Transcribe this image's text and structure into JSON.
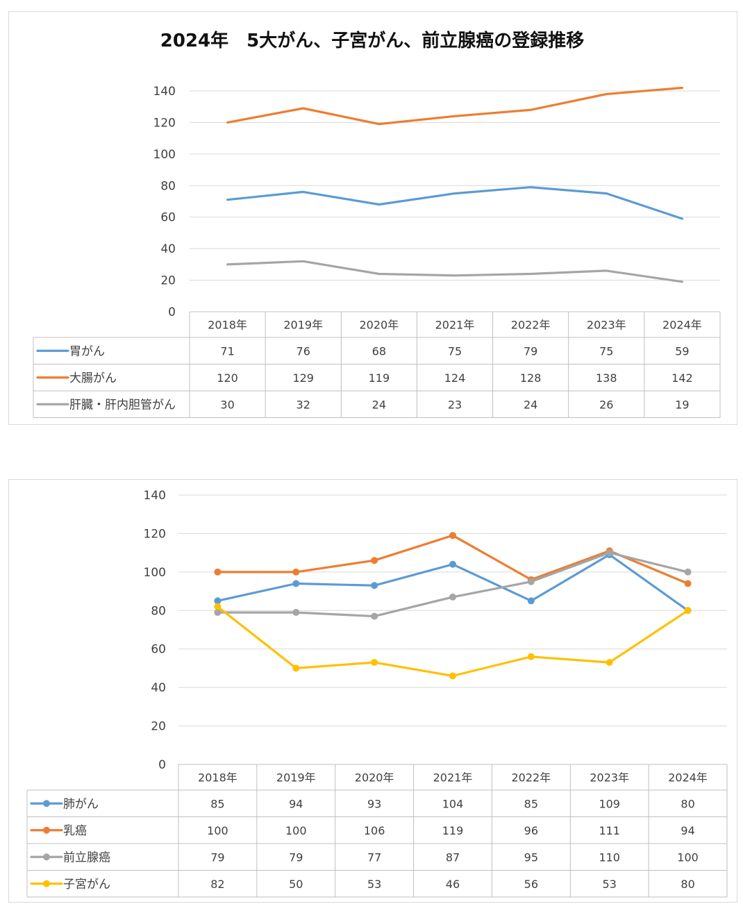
{
  "chart_data": [
    {
      "type": "line",
      "title": "2024年　5大がん、子宮がん、前立腺癌の登録推移",
      "categories": [
        "2018年",
        "2019年",
        "2020年",
        "2021年",
        "2022年",
        "2023年",
        "2024年"
      ],
      "ylim": [
        0,
        140
      ],
      "yticks": [
        0,
        20,
        40,
        60,
        80,
        100,
        120,
        140
      ],
      "grid": true,
      "markers": false,
      "legend": "data-table",
      "series": [
        {
          "name": "胃がん",
          "color": "#5b9bd5",
          "values": [
            71,
            76,
            68,
            75,
            79,
            75,
            59
          ]
        },
        {
          "name": "大腸がん",
          "color": "#ed7d31",
          "values": [
            120,
            129,
            119,
            124,
            128,
            138,
            142
          ]
        },
        {
          "name": "肝臓・肝内胆管がん",
          "color": "#a5a5a5",
          "values": [
            30,
            32,
            24,
            23,
            24,
            26,
            19
          ]
        }
      ]
    },
    {
      "type": "line",
      "title": "",
      "categories": [
        "2018年",
        "2019年",
        "2020年",
        "2021年",
        "2022年",
        "2023年",
        "2024年"
      ],
      "ylim": [
        0,
        140
      ],
      "yticks": [
        0,
        20,
        40,
        60,
        80,
        100,
        120,
        140
      ],
      "grid": true,
      "markers": true,
      "legend": "data-table",
      "series": [
        {
          "name": "肺がん",
          "color": "#5b9bd5",
          "values": [
            85,
            94,
            93,
            104,
            85,
            109,
            80
          ]
        },
        {
          "name": "乳癌",
          "color": "#ed7d31",
          "values": [
            100,
            100,
            106,
            119,
            96,
            111,
            94
          ]
        },
        {
          "name": "前立腺癌",
          "color": "#a5a5a5",
          "values": [
            79,
            79,
            77,
            87,
            95,
            110,
            100
          ]
        },
        {
          "name": "子宮がん",
          "color": "#ffc000",
          "values": [
            82,
            50,
            53,
            46,
            56,
            53,
            80
          ]
        }
      ]
    }
  ]
}
